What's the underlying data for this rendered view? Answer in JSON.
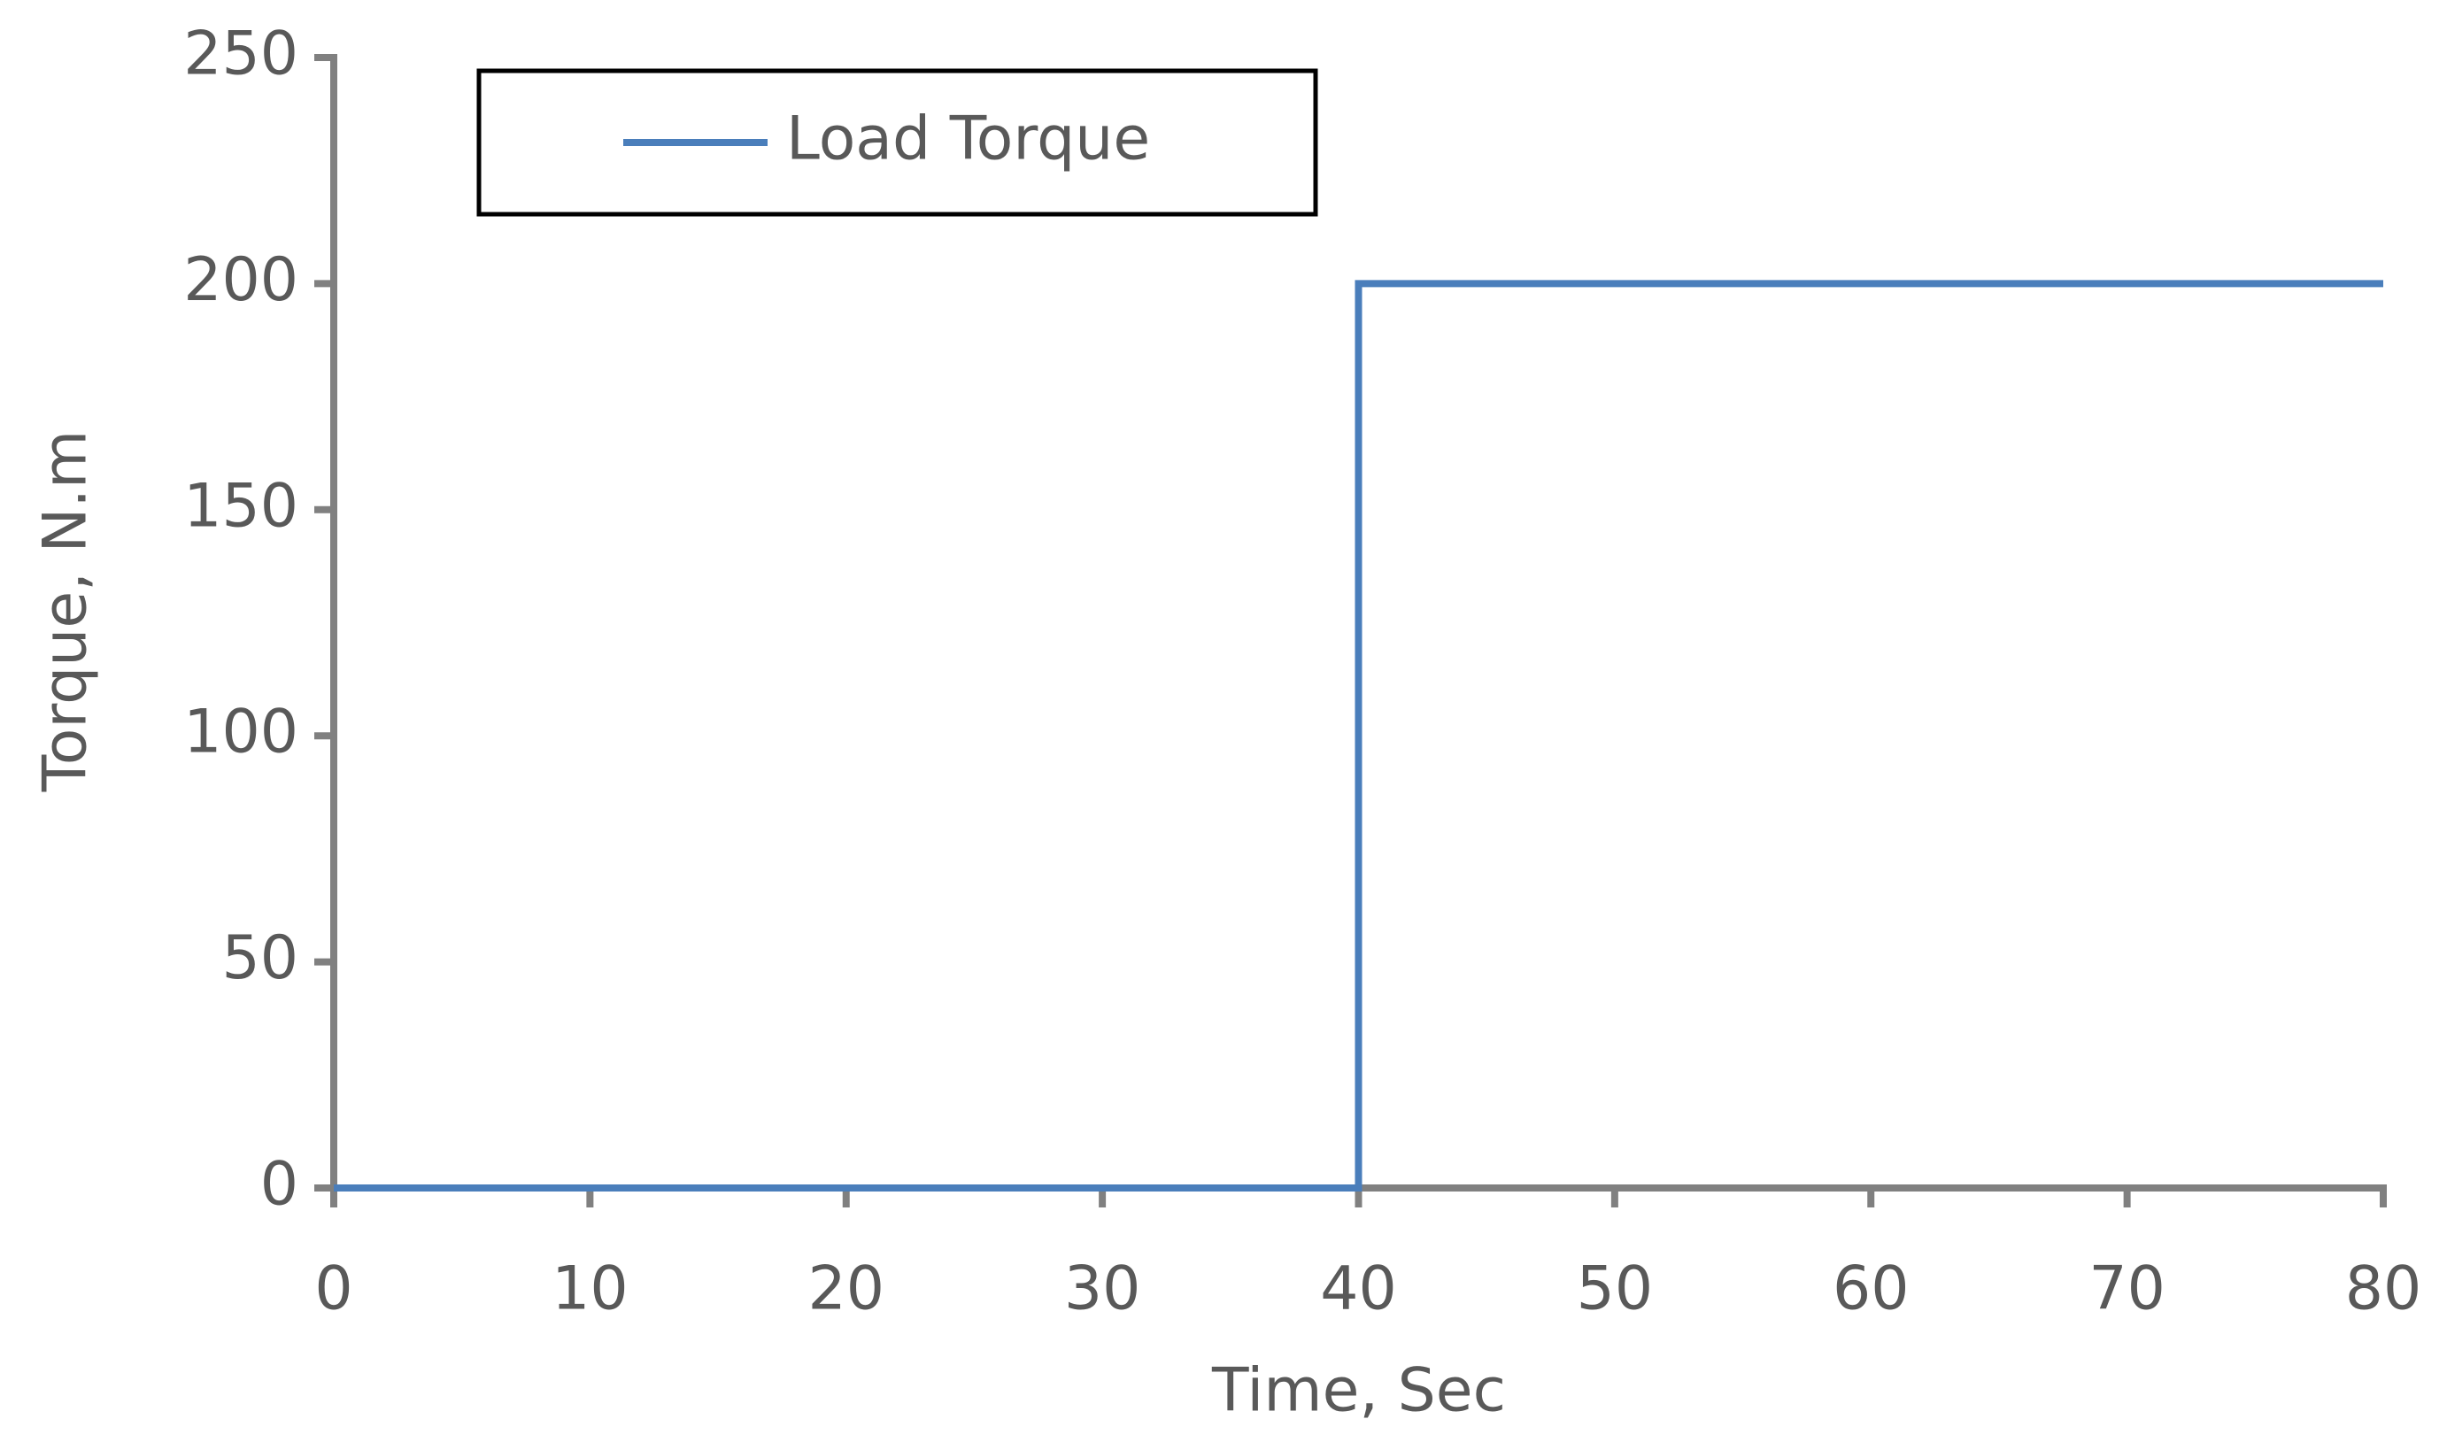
{
  "chart_data": {
    "type": "line",
    "x_label": "Time, Sec",
    "y_label": "Torque, N.m",
    "x": [
      0,
      40,
      40,
      80
    ],
    "series": [
      {
        "name": "Load Torque",
        "color": "#4a7ebb",
        "values": [
          0,
          0,
          200,
          200
        ]
      }
    ],
    "xlim": [
      0,
      80
    ],
    "xticks": [
      0,
      10,
      20,
      30,
      40,
      50,
      60,
      70,
      80
    ],
    "ylim": [
      0,
      250
    ],
    "yticks": [
      0,
      50,
      100,
      150,
      200,
      250
    ],
    "grid": false,
    "legend": "upper left"
  }
}
